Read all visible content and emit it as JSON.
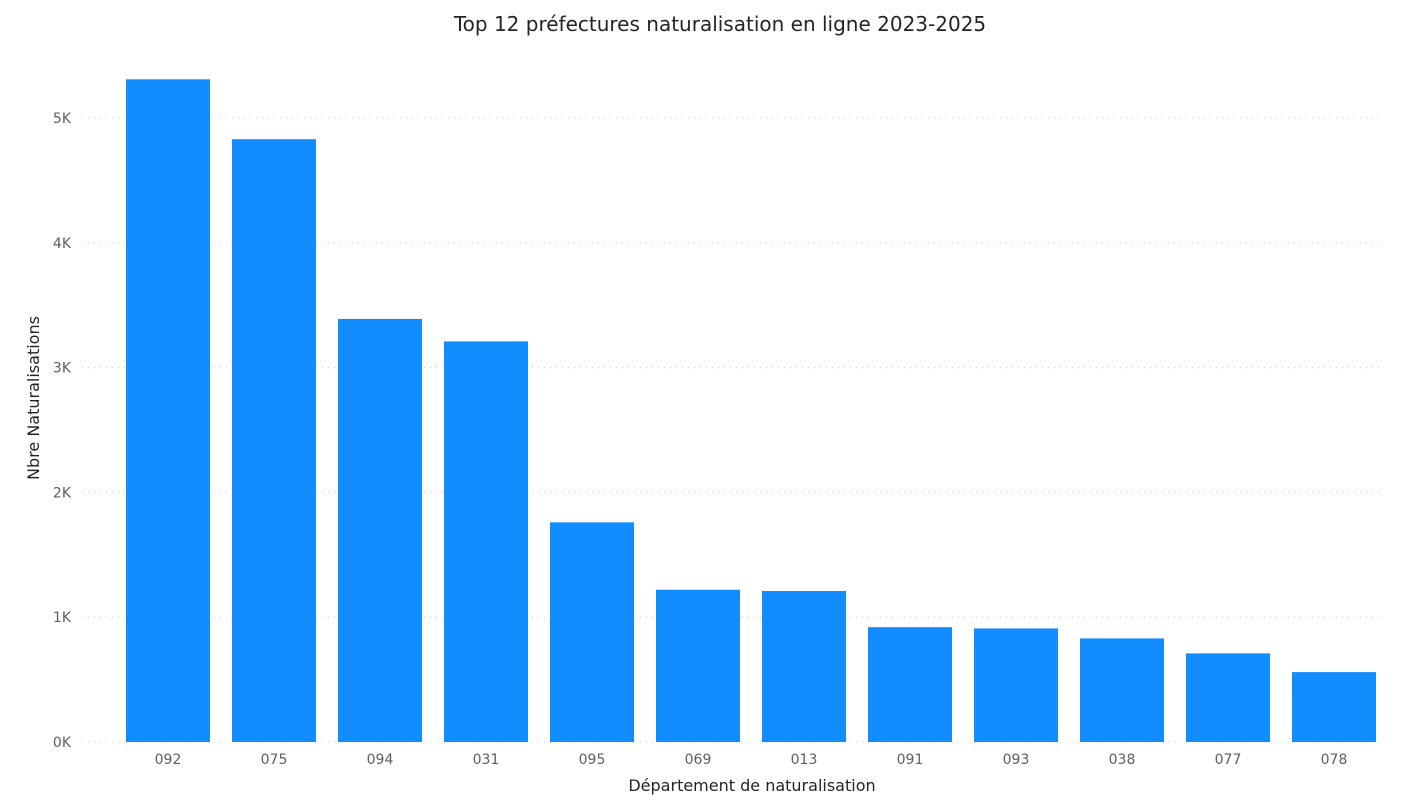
{
  "chart_data": {
    "type": "bar",
    "title": "Top 12 préfectures naturalisation en ligne 2023-2025",
    "xlabel": "Département de naturalisation",
    "ylabel": "Nbre Naturalisations",
    "categories": [
      "092",
      "075",
      "094",
      "031",
      "095",
      "069",
      "013",
      "091",
      "093",
      "038",
      "077",
      "078"
    ],
    "values": [
      5310,
      4830,
      3390,
      3210,
      1760,
      1220,
      1210,
      920,
      910,
      830,
      710,
      560
    ],
    "ylim": [
      0,
      5000
    ],
    "yticks": [
      0,
      1000,
      2000,
      3000,
      4000,
      5000
    ],
    "ytick_labels": [
      "0K",
      "1K",
      "2K",
      "3K",
      "4K",
      "5K"
    ],
    "grid": true,
    "legend": "none",
    "colors": {
      "bar": "#118dff",
      "grid": "#c8c6c4",
      "text": "#252423",
      "tick_text": "#605e5c"
    }
  }
}
